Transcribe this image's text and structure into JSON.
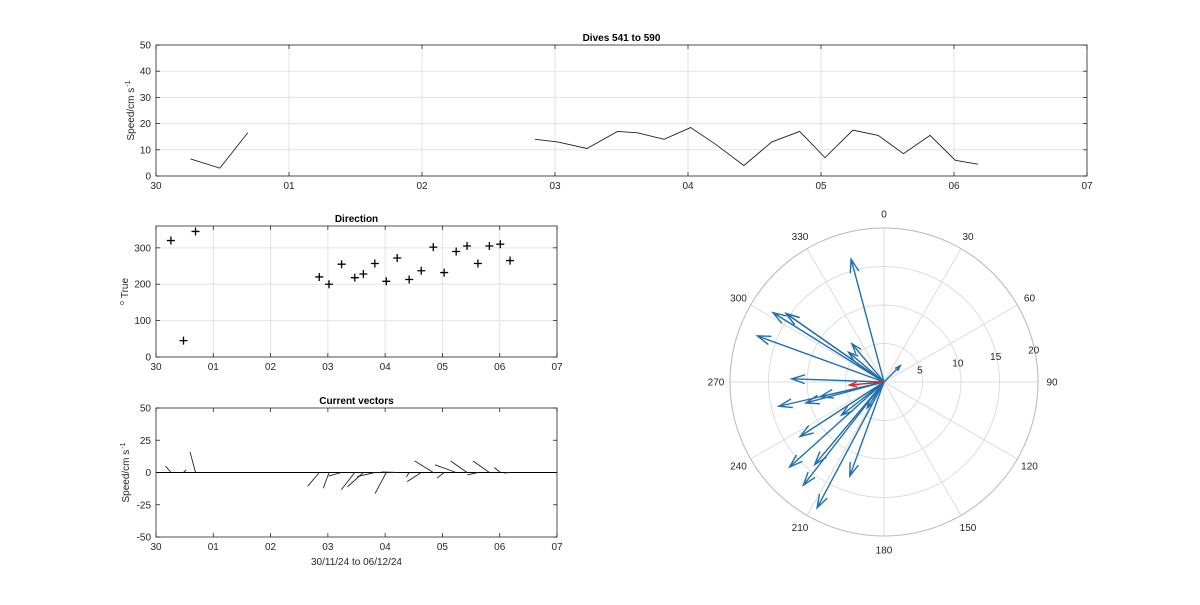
{
  "chart_data": [
    {
      "id": "speed",
      "type": "line",
      "title": "Dives 541 to 590",
      "xlabel": "",
      "ylabel": "Speed/cm s",
      "ylabel_sup": "-1",
      "xlim": [
        0,
        7
      ],
      "ylim": [
        0,
        50
      ],
      "xticks": [
        0,
        1,
        2,
        3,
        4,
        5,
        6,
        7
      ],
      "xtick_labels": [
        "30",
        "01",
        "02",
        "03",
        "04",
        "05",
        "06",
        "07"
      ],
      "yticks": [
        0,
        10,
        20,
        30,
        40,
        50
      ],
      "ytick_labels": [
        "0",
        "10",
        "20",
        "30",
        "40",
        "50"
      ],
      "grid": true,
      "line_color": "#222222",
      "segments": [
        {
          "x": [
            0.26,
            0.48,
            0.69
          ],
          "y": [
            6.5,
            3,
            16.5
          ]
        },
        {
          "x": [
            2.85,
            3.02,
            3.24,
            3.47,
            3.62,
            3.82,
            4.02,
            4.21,
            4.42,
            4.63,
            4.84,
            5.03,
            5.24,
            5.43,
            5.62,
            5.82,
            6.01,
            6.18
          ],
          "y": [
            14,
            13,
            10.5,
            17,
            16.5,
            14,
            18.5,
            12,
            4,
            13,
            17,
            7,
            17.5,
            15.5,
            8.5,
            15.5,
            6,
            4.5
          ]
        }
      ]
    },
    {
      "id": "direction",
      "type": "scatter",
      "title": "Direction",
      "xlabel": "",
      "ylabel": "True",
      "ylabel_pre": "o",
      "xlim": [
        0,
        7
      ],
      "ylim": [
        0,
        360
      ],
      "xticks": [
        0,
        1,
        2,
        3,
        4,
        5,
        6,
        7
      ],
      "xtick_labels": [
        "30",
        "01",
        "02",
        "03",
        "04",
        "05",
        "06",
        "07"
      ],
      "yticks": [
        0,
        100,
        200,
        300
      ],
      "ytick_labels": [
        "0",
        "100",
        "200",
        "300"
      ],
      "grid": true,
      "marker": "+",
      "x": [
        0.26,
        0.48,
        0.69,
        2.85,
        3.02,
        3.24,
        3.47,
        3.62,
        3.82,
        4.02,
        4.21,
        4.42,
        4.63,
        4.84,
        5.03,
        5.24,
        5.43,
        5.62,
        5.82,
        6.01,
        6.18
      ],
      "y": [
        320,
        45,
        345,
        220,
        200,
        255,
        218,
        228,
        257,
        208,
        272,
        213,
        237,
        302,
        232,
        290,
        305,
        257,
        305,
        310,
        265
      ]
    },
    {
      "id": "vectors",
      "type": "quiver",
      "title": "Current vectors",
      "xlabel": "30/11/24 to 06/12/24",
      "ylabel": "Speed/cm s",
      "ylabel_sup": "-1",
      "xlim": [
        0,
        7
      ],
      "ylim": [
        -50,
        50
      ],
      "xticks": [
        0,
        1,
        2,
        3,
        4,
        5,
        6,
        7
      ],
      "xtick_labels": [
        "30",
        "01",
        "02",
        "03",
        "04",
        "05",
        "06",
        "07"
      ],
      "yticks": [
        -50,
        -25,
        0,
        25,
        50
      ],
      "ytick_labels": [
        "-50",
        "-25",
        "0",
        "25",
        "50"
      ],
      "grid": false,
      "line_color": "#222222",
      "x": [
        0.26,
        0.48,
        0.69,
        2.85,
        3.02,
        3.24,
        3.47,
        3.62,
        3.82,
        4.02,
        4.21,
        4.42,
        4.63,
        4.84,
        5.03,
        5.24,
        5.43,
        5.62,
        5.82,
        6.01,
        6.18
      ],
      "speed": [
        6.5,
        3,
        16.5,
        14,
        13,
        10.5,
        17,
        16.5,
        14,
        18.5,
        12,
        4,
        13,
        17,
        7,
        17.5,
        15.5,
        8.5,
        15.5,
        6,
        4.5
      ],
      "direction": [
        320,
        45,
        345,
        220,
        200,
        255,
        218,
        228,
        257,
        208,
        272,
        213,
        237,
        302,
        232,
        290,
        305,
        257,
        305,
        310,
        265
      ]
    },
    {
      "id": "compass",
      "type": "polar",
      "title": "",
      "rlim": [
        0,
        20
      ],
      "rticks": [
        5,
        10,
        15,
        20
      ],
      "rtick_labels": [
        "5",
        "10",
        "15",
        "20"
      ],
      "theta_ticks": [
        0,
        30,
        60,
        90,
        120,
        150,
        180,
        210,
        240,
        270,
        300,
        330
      ],
      "theta_labels": [
        "0",
        "30",
        "60",
        "90",
        "120",
        "150",
        "180",
        "210",
        "240",
        "270",
        "300",
        "330"
      ],
      "arrow_color": "#1f6fae",
      "highlight_color": "#d62728",
      "speed": [
        6.5,
        3,
        16.5,
        14,
        13,
        10.5,
        17,
        16.5,
        14,
        18.5,
        12,
        4,
        13,
        17,
        7,
        17.5,
        15.5,
        8.5,
        15.5,
        6,
        4.5
      ],
      "direction": [
        320,
        45,
        345,
        220,
        200,
        255,
        218,
        228,
        257,
        208,
        272,
        213,
        237,
        302,
        232,
        290,
        305,
        257,
        305,
        310,
        265
      ],
      "highlight_index": 20
    }
  ]
}
